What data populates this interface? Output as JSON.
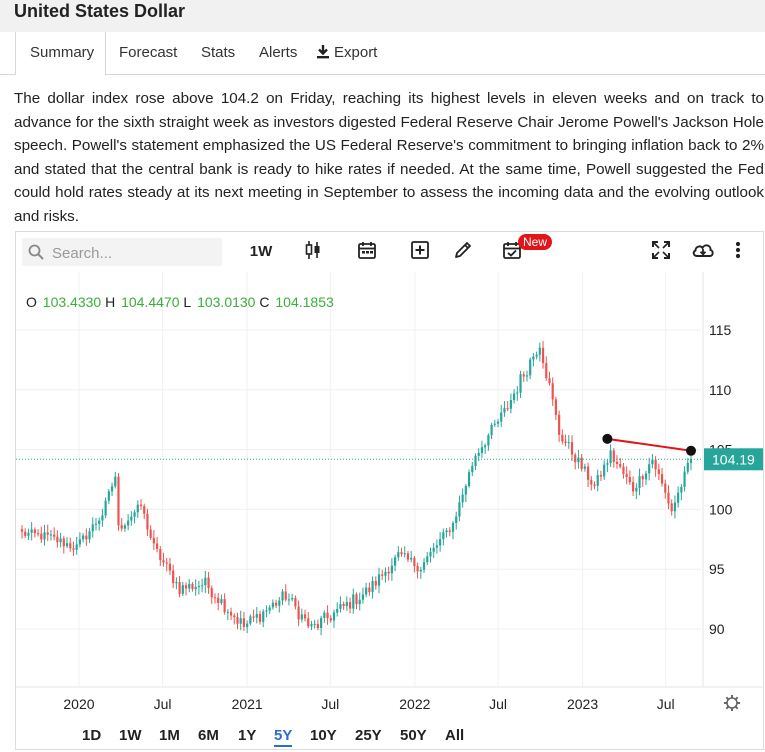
{
  "page": {
    "title": "United States Dollar"
  },
  "tabs": [
    {
      "label": "Summary",
      "active": true
    },
    {
      "label": "Forecast"
    },
    {
      "label": "Stats"
    },
    {
      "label": "Alerts"
    },
    {
      "label": "Export",
      "icon": "download-icon"
    }
  ],
  "summary_text": "The dollar index rose above 104.2 on Friday, reaching its highest levels in eleven weeks and on track to advance for the sixth straight week as investors digested Federal Reserve Chair Jerome Powell's Jackson Hole speech. Powell's statement emphasized the US Federal Reserve's commitment to bringing inflation back to 2% and stated that the central bank is ready to hike rates if needed. At the same time, Powell suggested the Fed could hold rates steady at its next meeting in September to assess the incoming data and the evolving outlook and risks.",
  "toolbar": {
    "search_placeholder": "Search...",
    "interval_label": "1W",
    "new_badge": "New",
    "icons": [
      "search-icon",
      "candlestick-icon",
      "calendar-icon",
      "add-box-icon",
      "pencil-icon",
      "calendar-check-icon",
      "fullscreen-icon",
      "cloud-download-icon",
      "more-vertical-icon"
    ]
  },
  "ohlc": {
    "o_label": "O",
    "o_value": "103.4330",
    "h_label": "H",
    "h_value": "104.4470",
    "l_label": "L",
    "l_value": "103.0130",
    "c_label": "C",
    "c_value": "104.1853"
  },
  "colors": {
    "up": "#26a69a",
    "down": "#ef5350",
    "last_price": "#26a69a",
    "trendline": "#e0161b",
    "active_range": "#2b6ecf"
  },
  "ranges": [
    {
      "label": "1D"
    },
    {
      "label": "1W"
    },
    {
      "label": "1M"
    },
    {
      "label": "6M"
    },
    {
      "label": "1Y"
    },
    {
      "label": "5Y",
      "active": true
    },
    {
      "label": "10Y"
    },
    {
      "label": "25Y"
    },
    {
      "label": "50Y"
    },
    {
      "label": "All"
    }
  ],
  "chart_data": {
    "type": "candlestick",
    "interval": "1W",
    "x_range": [
      "2019-08-30",
      "2023-08-25"
    ],
    "ylim": [
      85.5,
      119.5
    ],
    "y_ticks": [
      90,
      95,
      100,
      105,
      110,
      115
    ],
    "x_ticks": [
      {
        "label": "2020",
        "date": "2020-01-01"
      },
      {
        "label": "Jul",
        "date": "2020-07-01"
      },
      {
        "label": "2021",
        "date": "2021-01-01"
      },
      {
        "label": "Jul",
        "date": "2021-07-01"
      },
      {
        "label": "2022",
        "date": "2022-01-01"
      },
      {
        "label": "Jul",
        "date": "2022-07-01"
      },
      {
        "label": "2023",
        "date": "2023-01-01"
      },
      {
        "label": "Jul",
        "date": "2023-07-01"
      }
    ],
    "last_price_label": "104.19",
    "last_price": 104.19,
    "trendline": {
      "start": {
        "date": "2023-02-24",
        "value": 105.9
      },
      "end": {
        "date": "2023-08-25",
        "value": 104.9
      }
    },
    "anchors": [
      {
        "date": "2019-08-30",
        "value": 98.0
      },
      {
        "date": "2019-10-25",
        "value": 97.7
      },
      {
        "date": "2019-12-27",
        "value": 96.8
      },
      {
        "date": "2020-02-21",
        "value": 99.6
      },
      {
        "date": "2020-03-20",
        "value": 102.8
      },
      {
        "date": "2020-03-27",
        "value": 98.4
      },
      {
        "date": "2020-05-15",
        "value": 100.3
      },
      {
        "date": "2020-06-12",
        "value": 96.8
      },
      {
        "date": "2020-08-07",
        "value": 93.4
      },
      {
        "date": "2020-10-02",
        "value": 93.8
      },
      {
        "date": "2020-12-25",
        "value": 90.2
      },
      {
        "date": "2021-03-26",
        "value": 92.8
      },
      {
        "date": "2021-05-21",
        "value": 90.0
      },
      {
        "date": "2021-09-24",
        "value": 93.3
      },
      {
        "date": "2021-11-26",
        "value": 96.1
      },
      {
        "date": "2022-01-14",
        "value": 95.2
      },
      {
        "date": "2022-03-25",
        "value": 98.8
      },
      {
        "date": "2022-05-13",
        "value": 104.6
      },
      {
        "date": "2022-07-15",
        "value": 108.1
      },
      {
        "date": "2022-09-30",
        "value": 114.0
      },
      {
        "date": "2022-11-11",
        "value": 106.4
      },
      {
        "date": "2023-01-27",
        "value": 101.9
      },
      {
        "date": "2023-03-03",
        "value": 104.6
      },
      {
        "date": "2023-04-21",
        "value": 101.7
      },
      {
        "date": "2023-06-02",
        "value": 104.2
      },
      {
        "date": "2023-07-14",
        "value": 99.9
      },
      {
        "date": "2023-08-25",
        "value": 104.19
      }
    ]
  }
}
